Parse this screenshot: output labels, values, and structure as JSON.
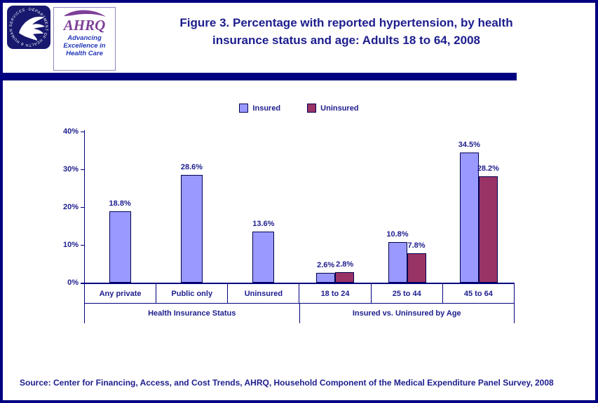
{
  "header": {
    "title_line1": "Figure 3. Percentage with reported hypertension, by health",
    "title_line2": "insurance status and age: Adults 18 to 64, 2008"
  },
  "logos": {
    "ahrq_name": "AHRQ",
    "ahrq_tagline_line1": "Advancing",
    "ahrq_tagline_line2": "Excellence in",
    "ahrq_tagline_line3": "Health Care"
  },
  "chart_data": {
    "type": "bar",
    "title": "Figure 3. Percentage with reported hypertension, by health insurance status and age: Adults 18 to 64, 2008",
    "ylim": [
      0,
      40
    ],
    "ytick_step": 10,
    "ytick_suffix": "%",
    "grid": "off",
    "legend_position": "top-center",
    "legend": [
      {
        "name": "Insured",
        "color": "#9999FF"
      },
      {
        "name": "Uninsured",
        "color": "#993366"
      }
    ],
    "groups": [
      {
        "label": "Health Insurance Status",
        "categories": [
          {
            "label": "Any private",
            "bars": [
              {
                "series": "Insured",
                "value": 18.8,
                "label": "18.8%"
              }
            ]
          },
          {
            "label": "Public only",
            "bars": [
              {
                "series": "Insured",
                "value": 28.6,
                "label": "28.6%"
              }
            ]
          },
          {
            "label": "Uninsured",
            "bars": [
              {
                "series": "Insured",
                "value": 13.6,
                "label": "13.6%"
              }
            ]
          }
        ]
      },
      {
        "label": "Insured vs. Uninsured by Age",
        "categories": [
          {
            "label": "18 to 24",
            "bars": [
              {
                "series": "Insured",
                "value": 2.6,
                "label": "2.6%"
              },
              {
                "series": "Uninsured",
                "value": 2.8,
                "label": "2.8%"
              }
            ]
          },
          {
            "label": "25 to 44",
            "bars": [
              {
                "series": "Insured",
                "value": 10.8,
                "label": "10.8%"
              },
              {
                "series": "Uninsured",
                "value": 7.8,
                "label": "7.8%"
              }
            ]
          },
          {
            "label": "45 to 64",
            "bars": [
              {
                "series": "Insured",
                "value": 34.5,
                "label": "34.5%"
              },
              {
                "series": "Uninsured",
                "value": 28.2,
                "label": "28.2%"
              }
            ]
          }
        ]
      }
    ]
  },
  "footer": {
    "source": "Source: Center for Financing, Access, and Cost Trends, AHRQ, Household Component of the Medical Expenditure Panel Survey, 2008"
  },
  "colors": {
    "navy_line": "#000080",
    "navy_text": "#1d1d8e",
    "insured": "#9999FF",
    "uninsured": "#993366"
  }
}
